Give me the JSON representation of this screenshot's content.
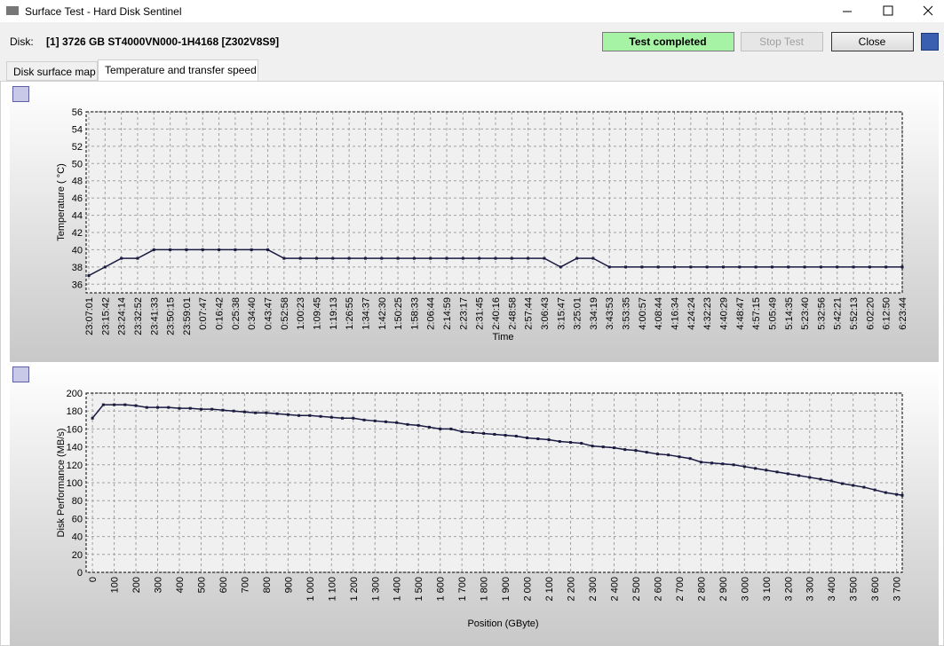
{
  "window": {
    "title": "Surface Test - Hard Disk Sentinel"
  },
  "disk": {
    "label": "Disk:",
    "name": "[1] 3726 GB  ST4000VN000-1H4168 [Z302V8S9]"
  },
  "buttons": {
    "status": "Test completed",
    "stop": "Stop Test",
    "close": "Close"
  },
  "tabs": [
    "Disk surface map",
    "Temperature and transfer speed"
  ],
  "chart_data": [
    {
      "type": "line",
      "ylabel": "Temperature ( °C)",
      "xlabel": "Time",
      "categories": [
        "23:07:01",
        "23:15:42",
        "23:24:14",
        "23:32:52",
        "23:41:33",
        "23:50:15",
        "23:59:01",
        "0:07:47",
        "0:16:42",
        "0:25:38",
        "0:34:40",
        "0:43:47",
        "0:52:58",
        "1:00:23",
        "1:09:45",
        "1:19:13",
        "1:26:55",
        "1:34:37",
        "1:42:30",
        "1:50:25",
        "1:58:33",
        "2:06:44",
        "2:14:59",
        "2:23:17",
        "2:31:45",
        "2:40:16",
        "2:48:58",
        "2:57:44",
        "3:06:43",
        "3:15:47",
        "3:25:01",
        "3:34:19",
        "3:43:53",
        "3:53:35",
        "4:00:57",
        "4:08:44",
        "4:16:34",
        "4:24:24",
        "4:32:23",
        "4:40:29",
        "4:48:47",
        "4:57:15",
        "5:05:49",
        "5:14:35",
        "5:23:40",
        "5:32:56",
        "5:42:21",
        "5:52:13",
        "6:02:20",
        "6:12:50",
        "6:23:44"
      ],
      "series": [
        {
          "color": "#1a1a40",
          "values": [
            37,
            38,
            39,
            39,
            40,
            40,
            40,
            40,
            40,
            40,
            40,
            40,
            39,
            39,
            39,
            39,
            39,
            39,
            39,
            39,
            39,
            39,
            39,
            39,
            39,
            39,
            39,
            39,
            39,
            38,
            39,
            39,
            38,
            38,
            38,
            38,
            38,
            38,
            38,
            38,
            38,
            38,
            38,
            38,
            38,
            38,
            38,
            38,
            38,
            38,
            38
          ]
        }
      ],
      "ylim": [
        35,
        56
      ],
      "yticks": [
        36,
        38,
        40,
        42,
        44,
        46,
        48,
        50,
        52,
        54,
        56
      ],
      "grid": true
    },
    {
      "type": "line",
      "ylabel": "Disk Performance (MB/s)",
      "xlabel": "Position (GByte)",
      "x": [
        0,
        50,
        100,
        150,
        200,
        250,
        300,
        350,
        400,
        450,
        500,
        550,
        600,
        650,
        700,
        750,
        800,
        850,
        900,
        950,
        1000,
        1050,
        1100,
        1150,
        1200,
        1250,
        1300,
        1350,
        1400,
        1450,
        1500,
        1550,
        1600,
        1650,
        1700,
        1750,
        1800,
        1850,
        1900,
        1950,
        2000,
        2050,
        2100,
        2150,
        2200,
        2250,
        2300,
        2350,
        2400,
        2450,
        2500,
        2550,
        2600,
        2650,
        2700,
        2750,
        2800,
        2850,
        2900,
        2950,
        3000,
        3050,
        3100,
        3150,
        3200,
        3250,
        3300,
        3350,
        3400,
        3450,
        3500,
        3550,
        3600,
        3650,
        3700,
        3726
      ],
      "series": [
        {
          "color": "#1a1a40",
          "values": [
            172,
            187,
            187,
            187,
            186,
            184,
            184,
            184,
            183,
            183,
            182,
            182,
            181,
            180,
            179,
            178,
            178,
            177,
            176,
            175,
            175,
            174,
            173,
            172,
            172,
            170,
            169,
            168,
            167,
            165,
            164,
            162,
            160,
            160,
            157,
            156,
            155,
            154,
            153,
            152,
            150,
            149,
            148,
            146,
            145,
            144,
            141,
            140,
            139,
            137,
            136,
            134,
            132,
            131,
            129,
            127,
            123,
            122,
            121,
            120,
            118,
            116,
            114,
            112,
            110,
            108,
            106,
            104,
            102,
            99,
            97,
            95,
            92,
            89,
            87,
            86
          ]
        }
      ],
      "xlim": [
        -29,
        3726
      ],
      "xticks": [
        0,
        100,
        200,
        300,
        400,
        500,
        600,
        700,
        800,
        900,
        {
          "value": 1000,
          "label": "1 000"
        },
        {
          "value": 1100,
          "label": "1 100"
        },
        {
          "value": 1200,
          "label": "1 200"
        },
        {
          "value": 1300,
          "label": "1 300"
        },
        {
          "value": 1400,
          "label": "1 400"
        },
        {
          "value": 1500,
          "label": "1 500"
        },
        {
          "value": 1600,
          "label": "1 600"
        },
        {
          "value": 1700,
          "label": "1 700"
        },
        {
          "value": 1800,
          "label": "1 800"
        },
        {
          "value": 1900,
          "label": "1 900"
        },
        {
          "value": 2000,
          "label": "2 000"
        },
        {
          "value": 2100,
          "label": "2 100"
        },
        {
          "value": 2200,
          "label": "2 200"
        },
        {
          "value": 2300,
          "label": "2 300"
        },
        {
          "value": 2400,
          "label": "2 400"
        },
        {
          "value": 2500,
          "label": "2 500"
        },
        {
          "value": 2600,
          "label": "2 600"
        },
        {
          "value": 2700,
          "label": "2 700"
        },
        {
          "value": 2800,
          "label": "2 800"
        },
        {
          "value": 2900,
          "label": "2 900"
        },
        {
          "value": 3000,
          "label": "3 000"
        },
        {
          "value": 3100,
          "label": "3 100"
        },
        {
          "value": 3200,
          "label": "3 200"
        },
        {
          "value": 3300,
          "label": "3 300"
        },
        {
          "value": 3400,
          "label": "3 400"
        },
        {
          "value": 3500,
          "label": "3 500"
        },
        {
          "value": 3600,
          "label": "3 600"
        },
        {
          "value": 3700,
          "label": "3 700"
        }
      ],
      "ylim": [
        0,
        200
      ],
      "yticks": [
        0,
        20,
        40,
        60,
        80,
        100,
        120,
        140,
        160,
        180,
        200
      ],
      "grid": true
    }
  ]
}
